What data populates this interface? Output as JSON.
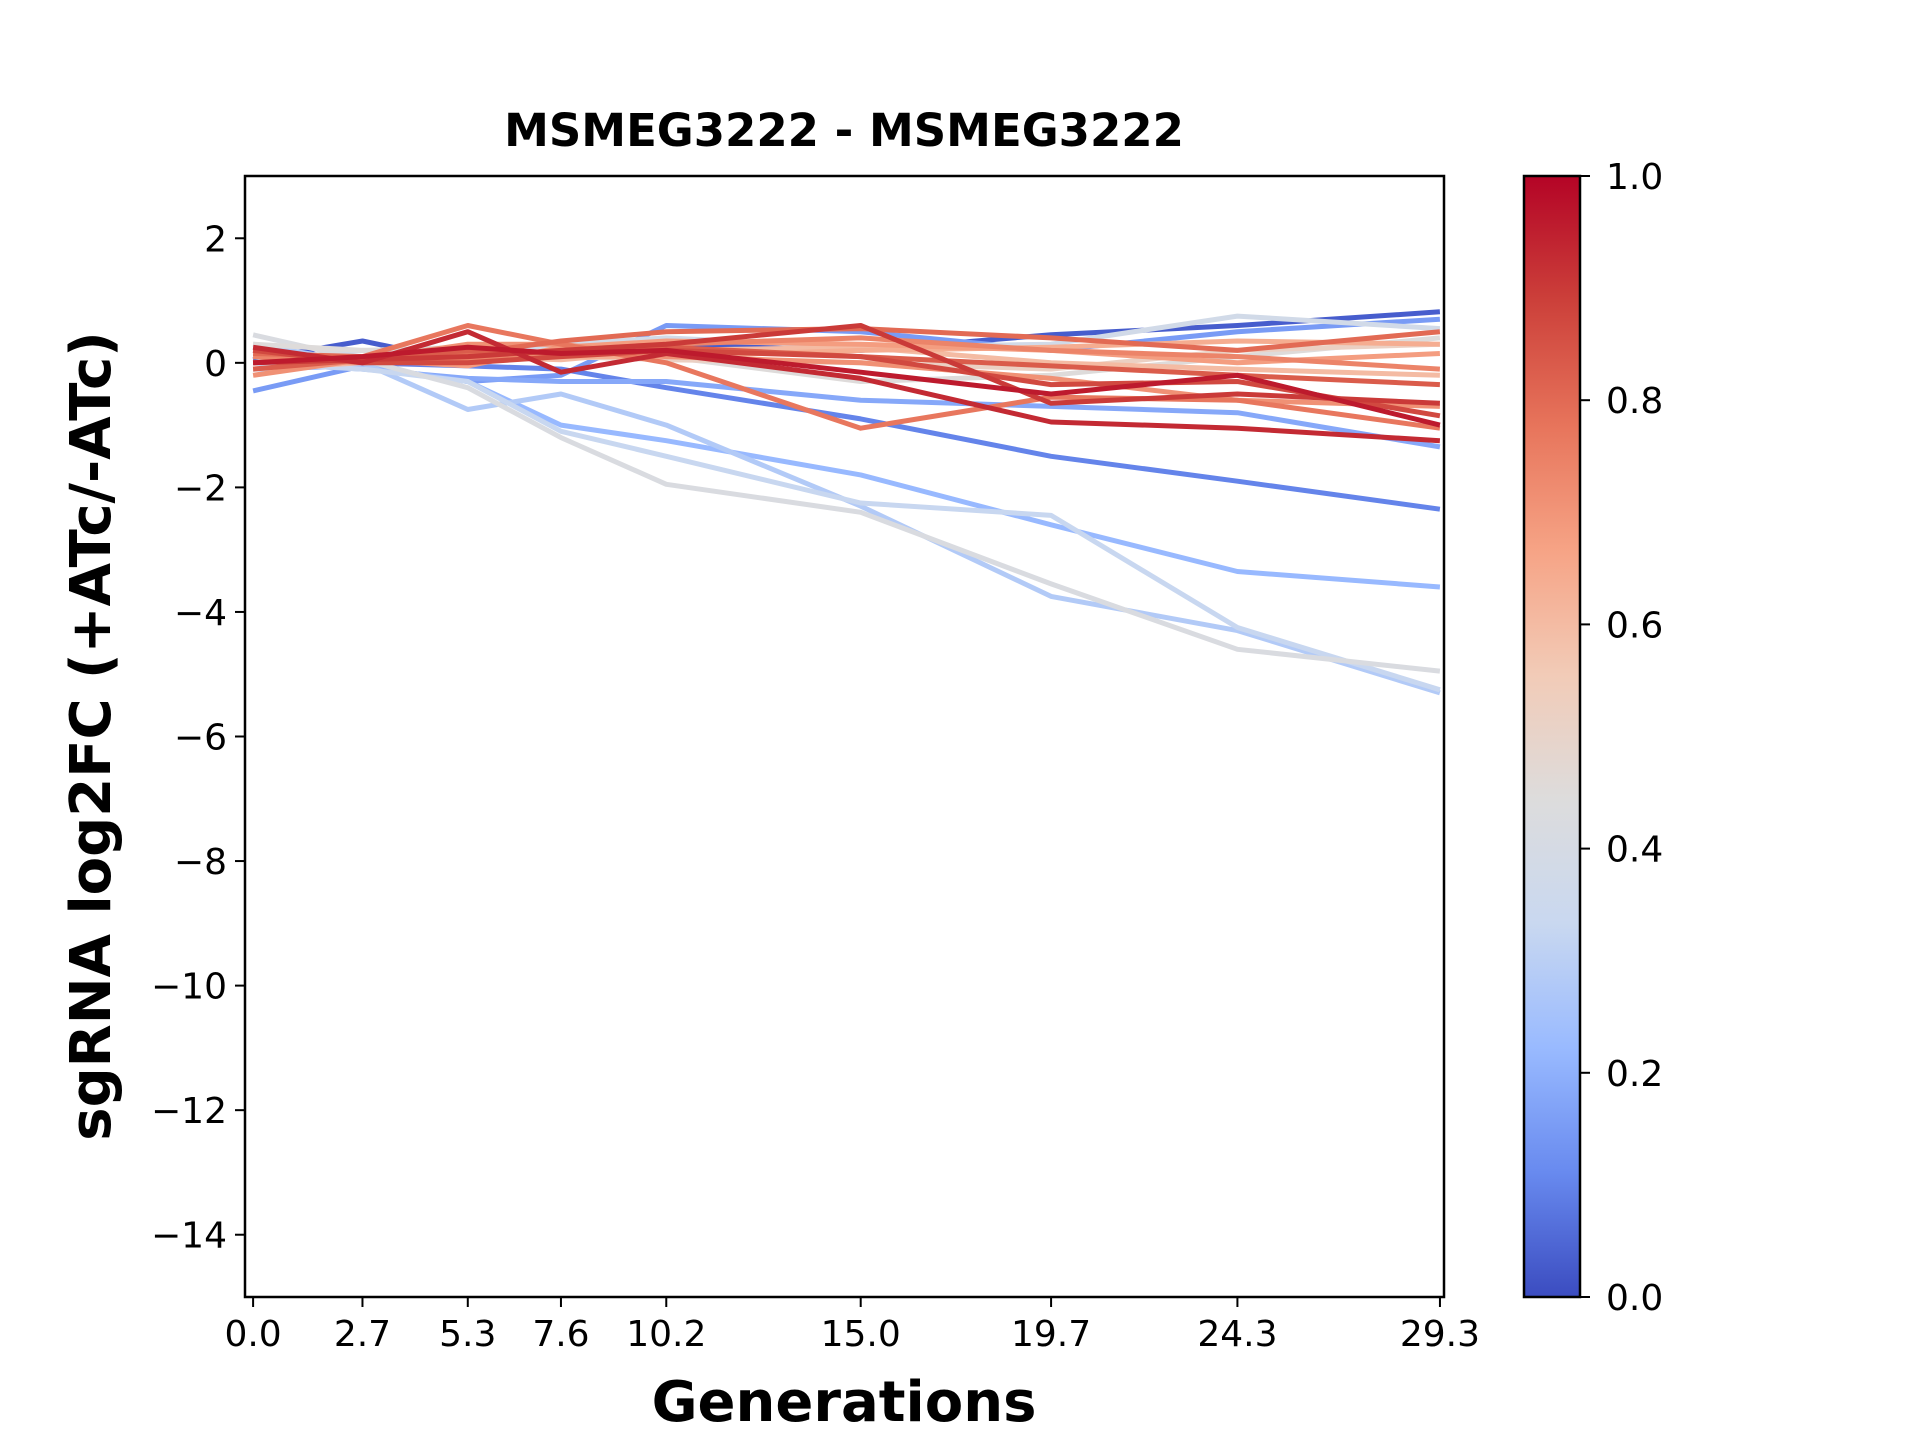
{
  "chart_data": {
    "type": "line",
    "title": "MSMEG3222 - MSMEG3222",
    "xlabel": "Generations",
    "ylabel": "sgRNA log2FC (+ATc/-ATc)",
    "x": [
      0.0,
      2.7,
      5.3,
      7.6,
      10.2,
      15.0,
      19.7,
      24.3,
      29.3
    ],
    "x_tick_labels": [
      "0.0",
      "2.7",
      "5.3",
      "7.6",
      "10.2",
      "15.0",
      "19.7",
      "24.3",
      "29.3"
    ],
    "xlim": [
      -0.2,
      29.4
    ],
    "ylim": [
      -15,
      3
    ],
    "y_ticks": [
      2,
      0,
      -2,
      -4,
      -6,
      -8,
      -10,
      -12,
      -14
    ],
    "y_tick_labels": [
      "2",
      "0",
      "−2",
      "−4",
      "−6",
      "−8",
      "−10",
      "−12",
      "−14"
    ],
    "grid": false,
    "colormap": "coolwarm",
    "colorbar": {
      "range": [
        0.0,
        1.0
      ],
      "ticks": [
        0.0,
        0.2,
        0.4,
        0.6,
        0.8,
        1.0
      ],
      "tick_labels": [
        "0.0",
        "0.2",
        "0.4",
        "0.6",
        "0.8",
        "1.0"
      ],
      "stops": [
        "#3b4cc0",
        "#688aef",
        "#99baff",
        "#c9d8f0",
        "#dddcdc",
        "#f2cbb7",
        "#f6a385",
        "#e7745b",
        "#cc403a",
        "#b40426"
      ]
    },
    "series": [
      {
        "color_value": 0.03,
        "values": [
          0.05,
          0.35,
          0.0,
          0.2,
          0.3,
          0.2,
          0.45,
          0.6,
          0.82
        ]
      },
      {
        "color_value": 0.1,
        "values": [
          0.2,
          0.0,
          -0.05,
          -0.1,
          -0.4,
          -0.9,
          -1.5,
          -1.9,
          -2.35
        ]
      },
      {
        "color_value": 0.15,
        "values": [
          -0.45,
          -0.05,
          -0.3,
          -0.2,
          0.6,
          0.5,
          0.2,
          0.5,
          0.7
        ]
      },
      {
        "color_value": 0.18,
        "values": [
          0.0,
          -0.1,
          -0.25,
          -0.3,
          -0.3,
          -0.6,
          -0.7,
          -0.8,
          -1.35
        ]
      },
      {
        "color_value": 0.22,
        "values": [
          -0.1,
          -0.05,
          -0.3,
          -1.0,
          -1.25,
          -1.8,
          -2.6,
          -3.35,
          -3.6
        ]
      },
      {
        "color_value": 0.28,
        "values": [
          0.3,
          0.0,
          -0.75,
          -0.5,
          -1.0,
          -2.3,
          -3.75,
          -4.3,
          -5.3
        ]
      },
      {
        "color_value": 0.33,
        "values": [
          0.0,
          -0.1,
          -0.3,
          -1.1,
          -1.5,
          -2.25,
          -2.45,
          -4.25,
          -5.25
        ]
      },
      {
        "color_value": 0.38,
        "values": [
          0.0,
          0.2,
          0.15,
          0.3,
          0.4,
          0.25,
          0.3,
          0.75,
          0.55
        ]
      },
      {
        "color_value": 0.42,
        "values": [
          0.45,
          0.05,
          -0.4,
          -1.2,
          -1.95,
          -2.4,
          -3.55,
          -4.6,
          -4.95
        ]
      },
      {
        "color_value": 0.45,
        "values": [
          0.3,
          0.2,
          0.25,
          0.1,
          0.1,
          -0.3,
          -0.2,
          0.1,
          0.4
        ]
      },
      {
        "color_value": 0.52,
        "values": [
          0.1,
          0.0,
          0.05,
          0.1,
          0.05,
          0.0,
          -0.1,
          0.2,
          0.3
        ]
      },
      {
        "color_value": 0.6,
        "values": [
          -0.1,
          0.0,
          0.1,
          0.05,
          0.2,
          0.25,
          0.0,
          -0.1,
          -0.2
        ]
      },
      {
        "color_value": 0.64,
        "values": [
          0.0,
          0.1,
          0.2,
          0.1,
          0.1,
          0.2,
          0.25,
          0.35,
          0.3
        ]
      },
      {
        "color_value": 0.68,
        "values": [
          0.2,
          0.05,
          -0.05,
          0.25,
          0.35,
          0.3,
          0.2,
          0.0,
          0.15
        ]
      },
      {
        "color_value": 0.71,
        "values": [
          -0.2,
          0.05,
          0.3,
          0.3,
          0.1,
          0.0,
          -0.25,
          -0.6,
          -0.7
        ]
      },
      {
        "color_value": 0.74,
        "values": [
          0.1,
          0.0,
          0.05,
          0.2,
          0.3,
          0.4,
          0.2,
          0.1,
          -0.1
        ]
      },
      {
        "color_value": 0.77,
        "values": [
          0.0,
          0.1,
          0.6,
          0.3,
          0.0,
          -1.05,
          -0.55,
          -0.6,
          -1.05
        ]
      },
      {
        "color_value": 0.8,
        "values": [
          0.15,
          0.1,
          0.15,
          0.35,
          0.5,
          0.55,
          0.4,
          0.2,
          0.5
        ]
      },
      {
        "color_value": 0.83,
        "values": [
          -0.1,
          0.05,
          0.2,
          0.15,
          0.25,
          0.1,
          -0.05,
          -0.2,
          -0.35
        ]
      },
      {
        "color_value": 0.87,
        "values": [
          0.2,
          0.0,
          0.0,
          0.1,
          0.2,
          0.1,
          -0.35,
          -0.3,
          -0.85
        ]
      },
      {
        "color_value": 0.9,
        "values": [
          0.0,
          0.05,
          0.1,
          0.2,
          0.3,
          0.6,
          -0.65,
          -0.5,
          -0.65
        ]
      },
      {
        "color_value": 0.93,
        "values": [
          0.25,
          0.0,
          0.5,
          -0.15,
          0.15,
          -0.25,
          -0.95,
          -1.05,
          -1.25
        ]
      },
      {
        "color_value": 0.96,
        "values": [
          0.0,
          0.1,
          0.25,
          0.15,
          0.2,
          -0.15,
          -0.5,
          -0.2,
          -1.0
        ]
      }
    ]
  }
}
